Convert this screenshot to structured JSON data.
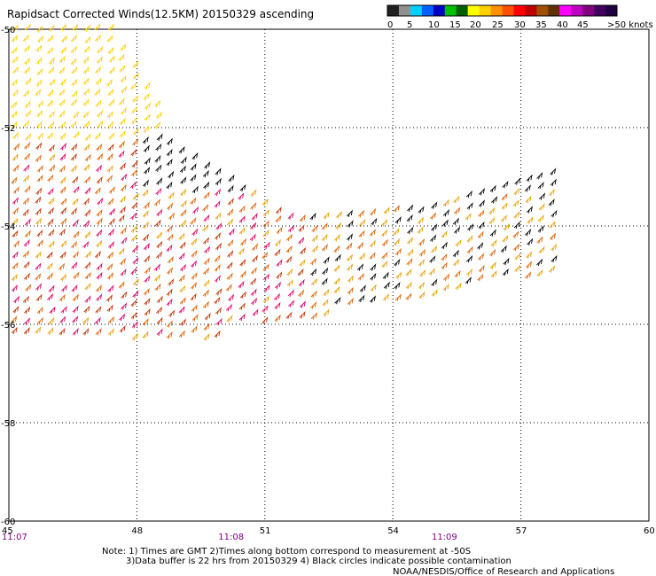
{
  "chart_data": {
    "type": "wind-barb-map",
    "title": "Rapidsact Corrected Winds(12.5KM) 20150329 ascending",
    "xlim": [
      45,
      60
    ],
    "ylim": [
      -60,
      -50
    ],
    "x_ticks": [
      "45",
      "48",
      "51",
      "54",
      "57",
      "60"
    ],
    "y_ticks": [
      "-50",
      "-52",
      "-54",
      "-56",
      "-58",
      "-60"
    ],
    "time_labels": [
      {
        "lon": 45,
        "text": "11:07"
      },
      {
        "lon": 50.2,
        "text": "11:08"
      },
      {
        "lon": 55.2,
        "text": "11:09"
      }
    ],
    "legend": {
      "labels": [
        "0",
        "5",
        "10",
        "15",
        "20",
        "25",
        "30",
        "35",
        "40",
        "45",
        ">50 knots"
      ],
      "colors": [
        "#202020",
        "#909090",
        "#00d0ff",
        "#0060ff",
        "#0000c0",
        "#00c000",
        "#006000",
        "#ffff00",
        "#ffd000",
        "#ff9000",
        "#ff5000",
        "#ff0000",
        "#c00000",
        "#a05000",
        "#603000",
        "#ff00ff",
        "#c000c0",
        "#800080",
        "#400060",
        "#200040"
      ]
    },
    "swath": {
      "color_scale_knots": [
        {
          "max": 20,
          "color": "#000000"
        },
        {
          "max": 25,
          "color": "#e8a000"
        },
        {
          "max": 30,
          "color": "#e06000"
        },
        {
          "max": 35,
          "color": "#c03000"
        },
        {
          "max": 40,
          "color": "#e00060"
        }
      ],
      "high_wind_color": "#ffd000"
    },
    "grid": true
  },
  "notes": {
    "line1": "Note: 1) Times are GMT 2)Times along bottom correspond to measurement at -50S",
    "line2": "3)Data buffer is 22 hrs from 20150329 4) Black circles indicate possible contamination",
    "credit": "NOAA/NESDIS/Office of Research and Applications"
  }
}
